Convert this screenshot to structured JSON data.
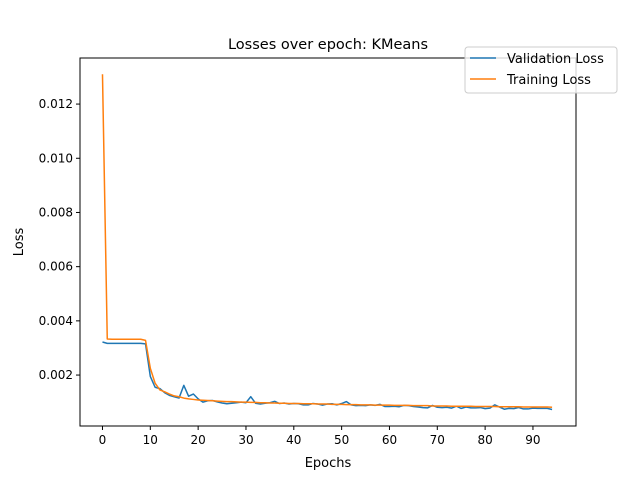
{
  "chart_data": {
    "type": "line",
    "title": "Losses over epoch: KMeans",
    "xlabel": "Epochs",
    "ylabel": "Loss",
    "xlim": [
      -4.7,
      99
    ],
    "ylim": [
      0.00012,
      0.0137
    ],
    "xticks": [
      "0",
      "10",
      "20",
      "30",
      "40",
      "50",
      "60",
      "70",
      "80",
      "90"
    ],
    "yticks": [
      "0.002",
      "0.004",
      "0.006",
      "0.008",
      "0.010",
      "0.012"
    ],
    "grid": false,
    "legend_position": "top-right",
    "x": [
      0,
      1,
      2,
      3,
      4,
      5,
      6,
      7,
      8,
      9,
      10,
      11,
      12,
      13,
      14,
      15,
      16,
      17,
      18,
      19,
      20,
      21,
      22,
      23,
      24,
      25,
      26,
      27,
      28,
      29,
      30,
      31,
      32,
      33,
      34,
      35,
      36,
      37,
      38,
      39,
      40,
      41,
      42,
      43,
      44,
      45,
      46,
      47,
      48,
      49,
      50,
      51,
      52,
      53,
      54,
      55,
      56,
      57,
      58,
      59,
      60,
      61,
      62,
      63,
      64,
      65,
      66,
      67,
      68,
      69,
      70,
      71,
      72,
      73,
      74,
      75,
      76,
      77,
      78,
      79,
      80,
      81,
      82,
      83,
      84,
      85,
      86,
      87,
      88,
      89,
      90,
      91,
      92,
      93,
      94
    ],
    "series": [
      {
        "name": "Validation Loss",
        "color": "#1f77b4",
        "values": [
          0.00322,
          0.00317,
          0.00317,
          0.00317,
          0.00317,
          0.00317,
          0.00317,
          0.00317,
          0.00317,
          0.00315,
          0.00195,
          0.00155,
          0.0015,
          0.00135,
          0.00125,
          0.0012,
          0.00115,
          0.00162,
          0.00122,
          0.0013,
          0.00112,
          0.001,
          0.00105,
          0.00106,
          0.00101,
          0.00097,
          0.00094,
          0.00096,
          0.00098,
          0.001,
          0.00098,
          0.0012,
          0.00096,
          0.00093,
          0.00096,
          0.00098,
          0.00103,
          0.00095,
          0.00097,
          0.00093,
          0.00095,
          0.00094,
          0.0009,
          0.0009,
          0.00095,
          0.00093,
          0.00089,
          0.00093,
          0.00094,
          0.0009,
          0.00095,
          0.00102,
          0.0009,
          0.00087,
          0.00088,
          0.00087,
          0.0009,
          0.00088,
          0.00092,
          0.00084,
          0.00084,
          0.00085,
          0.00083,
          0.00088,
          0.00087,
          0.00084,
          0.00082,
          0.0008,
          0.00079,
          0.00088,
          0.00081,
          0.0008,
          0.00081,
          0.00078,
          0.00085,
          0.00077,
          0.00082,
          0.00079,
          0.00079,
          0.0008,
          0.00076,
          0.00078,
          0.0009,
          0.00082,
          0.00074,
          0.00077,
          0.00076,
          0.0008,
          0.00075,
          0.00075,
          0.00078,
          0.00077,
          0.00077,
          0.00077,
          0.00073
        ]
      },
      {
        "name": "Training Loss",
        "color": "#ff7f0e",
        "values": [
          0.0131,
          0.00333,
          0.00332,
          0.00332,
          0.00332,
          0.00332,
          0.00332,
          0.00332,
          0.00332,
          0.00328,
          0.00225,
          0.0017,
          0.00145,
          0.00138,
          0.0013,
          0.00123,
          0.0012,
          0.00115,
          0.00112,
          0.0011,
          0.00108,
          0.00107,
          0.00106,
          0.00105,
          0.00104,
          0.00103,
          0.00102,
          0.00102,
          0.00101,
          0.001,
          0.001,
          0.00099,
          0.00099,
          0.00098,
          0.00098,
          0.00097,
          0.00097,
          0.00096,
          0.00096,
          0.00095,
          0.00095,
          0.00095,
          0.00094,
          0.00094,
          0.00094,
          0.00093,
          0.00093,
          0.00093,
          0.00092,
          0.00092,
          0.00092,
          0.00091,
          0.00091,
          0.00091,
          0.0009,
          0.0009,
          0.0009,
          0.00089,
          0.00089,
          0.00089,
          0.00089,
          0.00088,
          0.00088,
          0.00088,
          0.00088,
          0.00087,
          0.00087,
          0.00087,
          0.00087,
          0.00086,
          0.00086,
          0.00086,
          0.00086,
          0.00085,
          0.00085,
          0.00085,
          0.00085,
          0.00085,
          0.00084,
          0.00084,
          0.00084,
          0.00084,
          0.00084,
          0.00083,
          0.00083,
          0.00083,
          0.00083,
          0.00083,
          0.00082,
          0.00082,
          0.00082,
          0.00082,
          0.00082,
          0.00082,
          0.00081
        ]
      }
    ]
  }
}
